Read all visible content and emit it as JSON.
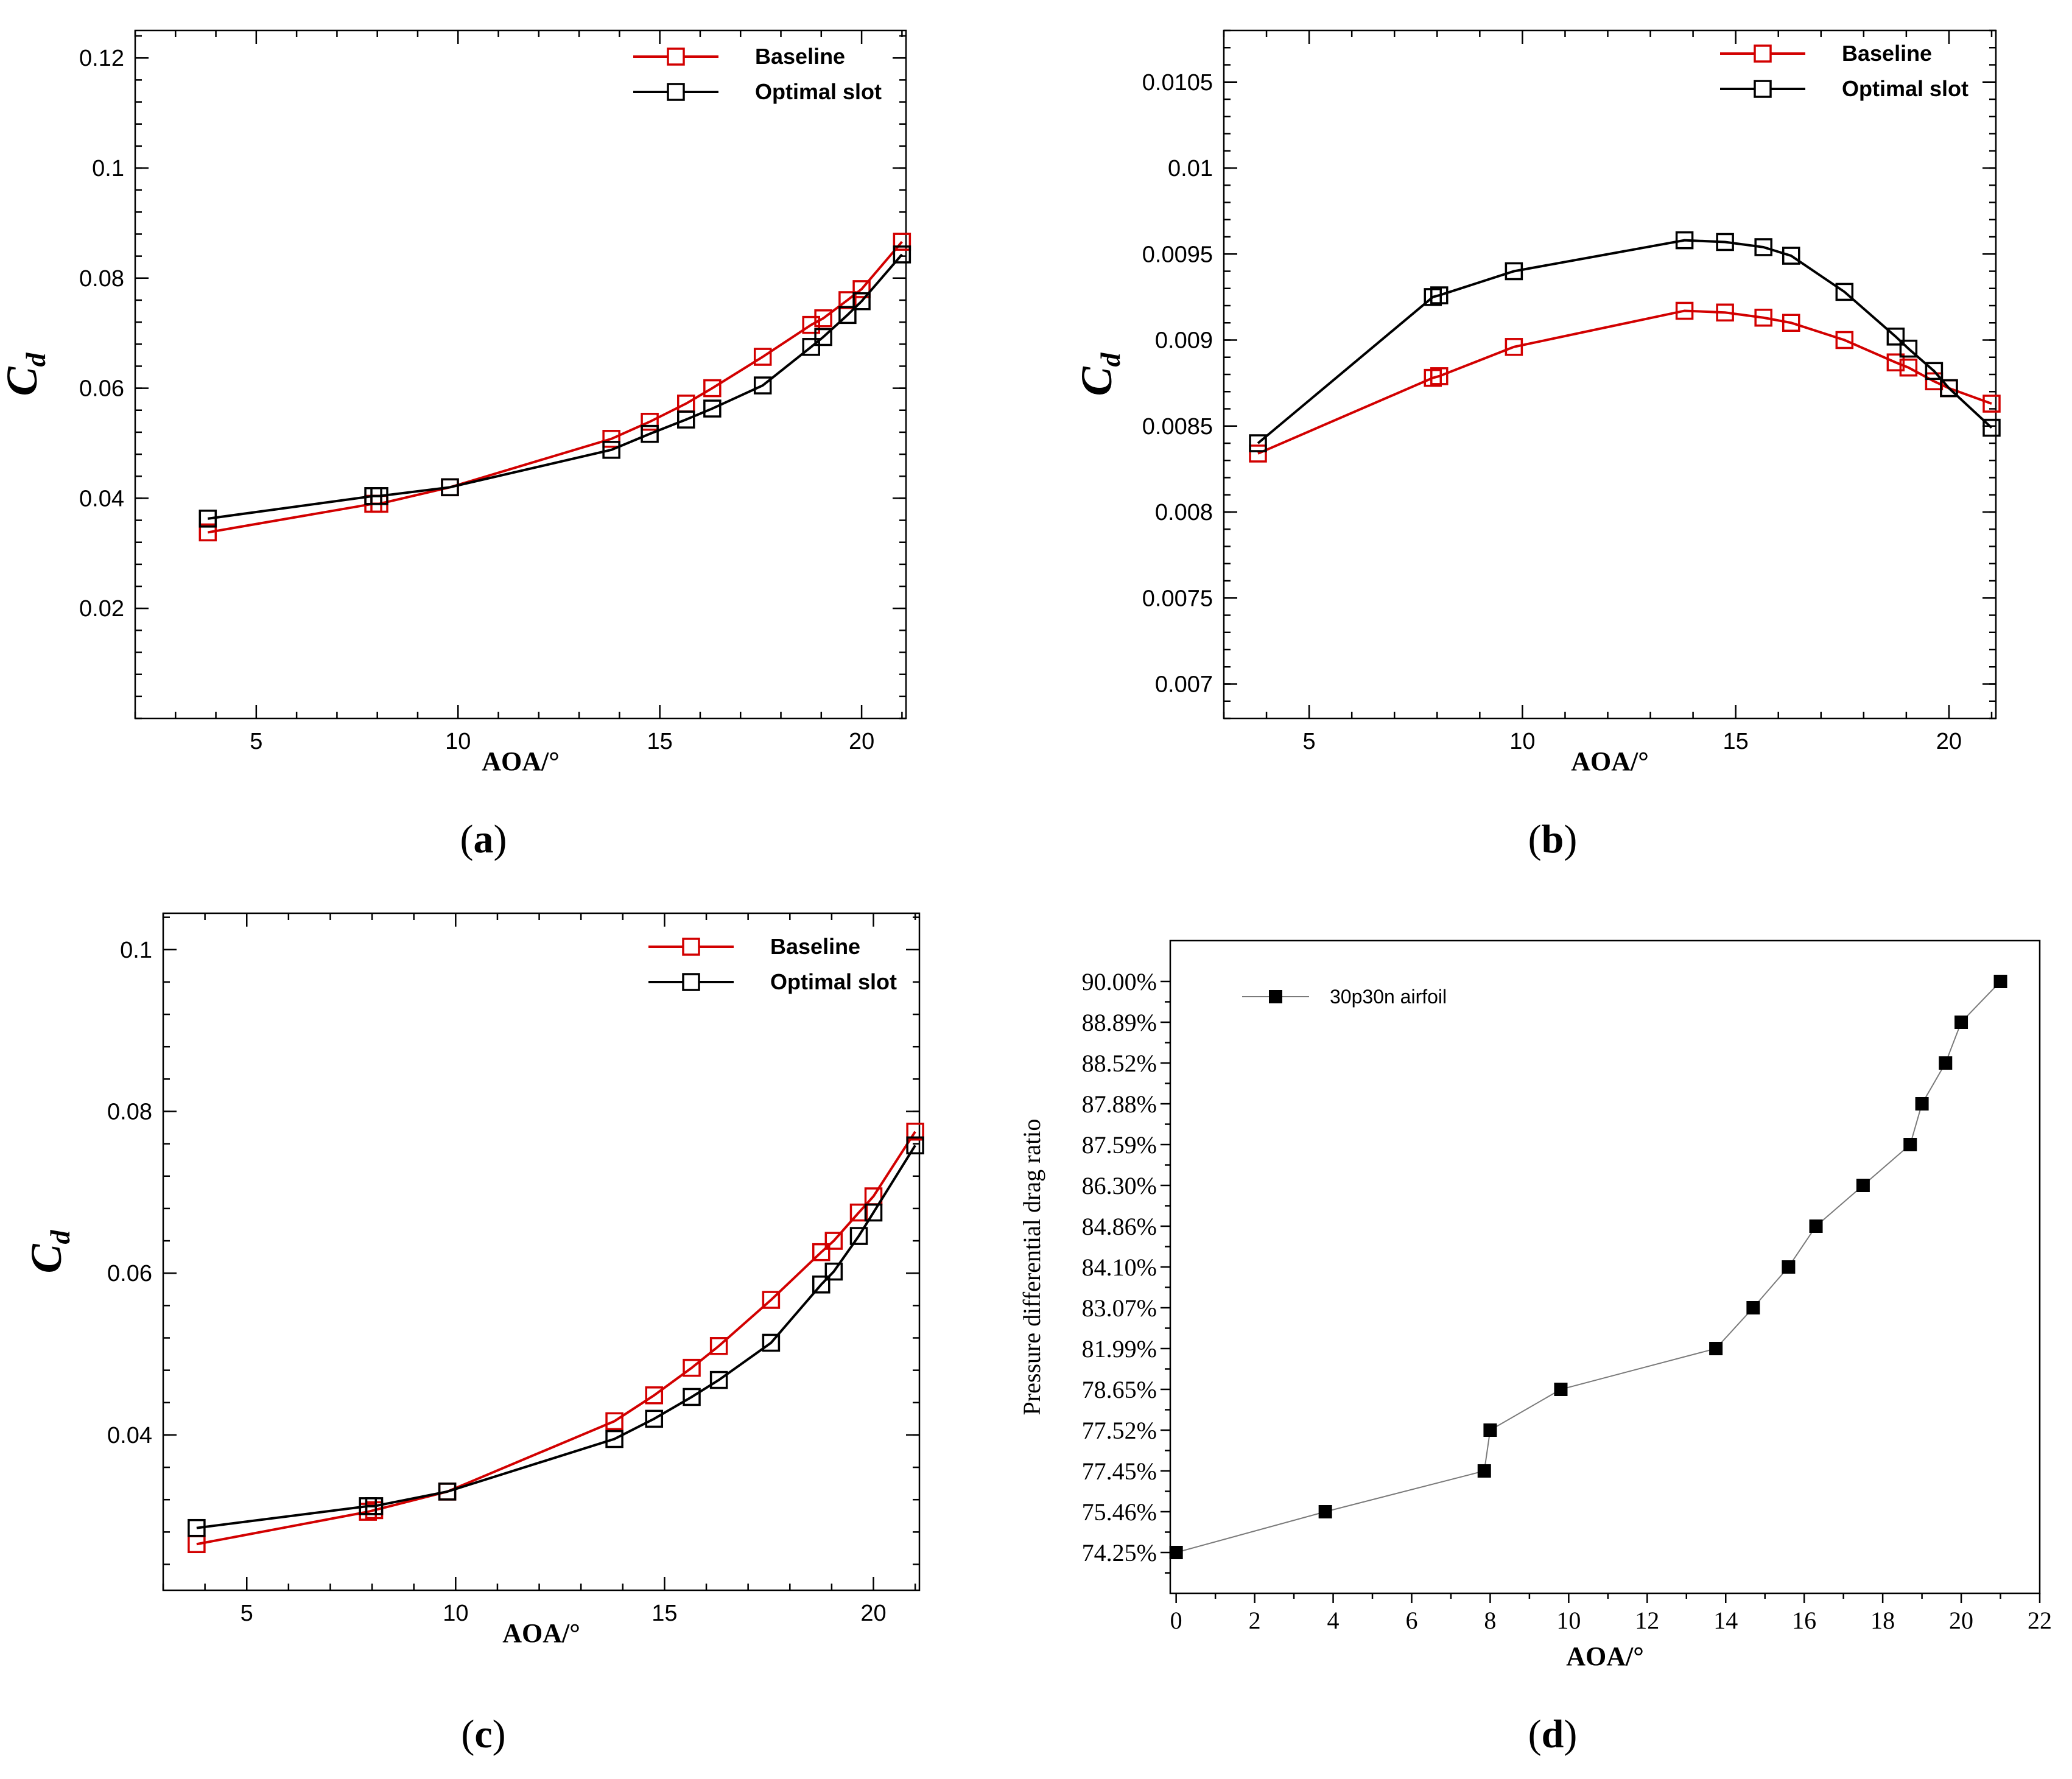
{
  "colors": {
    "baseline": "#d20000",
    "optimal": "#000000",
    "ratio": "#000000",
    "ratio_line": "#7a7a7a"
  },
  "captions": [
    "a",
    "b",
    "c",
    "d"
  ],
  "chart_data": [
    {
      "id": "a",
      "type": "line",
      "title": "",
      "xlabel": "AOA/°",
      "ylabel": "C",
      "ylabel_sub": "d",
      "xlim": [
        2,
        21.1
      ],
      "ylim": [
        0,
        0.125
      ],
      "xticks": [
        5,
        10,
        15,
        20
      ],
      "yticks": [
        0.02,
        0.04,
        0.06,
        0.08,
        0.1,
        0.12
      ],
      "ytick_labels": [
        "0.02",
        "0.04",
        "0.06",
        "0.08",
        "0.1",
        "0.12"
      ],
      "legend": [
        "Baseline",
        "Optimal slot"
      ],
      "x": [
        3.8,
        7.9,
        8.05,
        9.8,
        13.8,
        14.75,
        15.65,
        16.3,
        17.55,
        18.75,
        19.05,
        19.65,
        20.0,
        21.0
      ],
      "series": [
        {
          "name": "Baseline",
          "values": [
            0.0338,
            0.039,
            0.039,
            0.042,
            0.0508,
            0.0539,
            0.0572,
            0.06,
            0.0657,
            0.0715,
            0.0727,
            0.076,
            0.078,
            0.0866
          ]
        },
        {
          "name": "Optimal slot",
          "values": [
            0.0363,
            0.0404,
            0.0404,
            0.042,
            0.0488,
            0.0517,
            0.0543,
            0.0563,
            0.0605,
            0.0675,
            0.0693,
            0.0733,
            0.0758,
            0.0843
          ]
        }
      ]
    },
    {
      "id": "b",
      "type": "line",
      "title": "",
      "xlabel": "AOA/°",
      "ylabel": "C",
      "ylabel_sub": "d",
      "xlim": [
        3,
        21.1
      ],
      "ylim": [
        0.0068,
        0.0108
      ],
      "xticks": [
        5,
        10,
        15,
        20
      ],
      "yticks": [
        0.007,
        0.0075,
        0.008,
        0.0085,
        0.009,
        0.0095,
        0.01,
        0.0105
      ],
      "ytick_labels": [
        "0.007",
        "0.0075",
        "0.008",
        "0.0085",
        "0.009",
        "0.0095",
        "0.01",
        "0.0105"
      ],
      "legend": [
        "Baseline",
        "Optimal slot"
      ],
      "x": [
        3.8,
        7.9,
        8.05,
        9.8,
        13.8,
        14.75,
        15.65,
        16.3,
        17.55,
        18.75,
        19.05,
        19.65,
        20.0,
        21.0
      ],
      "series": [
        {
          "name": "Baseline",
          "values": [
            0.00834,
            0.00878,
            0.00879,
            0.00896,
            0.00917,
            0.00916,
            0.00913,
            0.0091,
            0.009,
            0.00887,
            0.00884,
            0.00876,
            0.00872,
            0.00863
          ]
        },
        {
          "name": "Optimal slot",
          "values": [
            0.0084,
            0.00925,
            0.00926,
            0.0094,
            0.00958,
            0.00957,
            0.00954,
            0.00949,
            0.00928,
            0.00902,
            0.00895,
            0.00882,
            0.00872,
            0.00849
          ]
        }
      ]
    },
    {
      "id": "c",
      "type": "line",
      "title": "",
      "xlabel": "AOA/°",
      "ylabel": "C",
      "ylabel_sub": "d",
      "xlim": [
        3,
        21.1
      ],
      "ylim": [
        0.0208,
        0.1045
      ],
      "xticks": [
        5,
        10,
        15,
        20
      ],
      "yticks": [
        0.04,
        0.06,
        0.08,
        0.1
      ],
      "ytick_labels": [
        "0.04",
        "0.06",
        "0.08",
        "0.1"
      ],
      "legend": [
        "Baseline",
        "Optimal slot"
      ],
      "x": [
        3.8,
        7.9,
        8.05,
        9.8,
        13.8,
        14.75,
        15.65,
        16.3,
        17.55,
        18.75,
        19.05,
        19.65,
        20.0,
        21.0
      ],
      "series": [
        {
          "name": "Baseline",
          "values": [
            0.0265,
            0.0305,
            0.0307,
            0.033,
            0.0417,
            0.0449,
            0.0483,
            0.051,
            0.0567,
            0.0626,
            0.064,
            0.0675,
            0.0695,
            0.0775
          ]
        },
        {
          "name": "Optimal slot",
          "values": [
            0.0285,
            0.0312,
            0.0312,
            0.033,
            0.0395,
            0.042,
            0.0447,
            0.0468,
            0.0514,
            0.0586,
            0.0602,
            0.0646,
            0.0675,
            0.0758
          ]
        }
      ]
    },
    {
      "id": "d",
      "type": "line",
      "title": "",
      "xlabel": "AOA/°",
      "ylabel": "Pressure differential drag ratio",
      "xlim": [
        -0.15,
        22.0
      ],
      "xticks": [
        0,
        2,
        4,
        6,
        8,
        10,
        12,
        14,
        16,
        18,
        20,
        22
      ],
      "y_is_categorical": true,
      "ylim": [
        -1,
        15
      ],
      "ytick_labels": [
        "74.25%",
        "75.46%",
        "77.45%",
        "77.52%",
        "78.65%",
        "81.99%",
        "83.07%",
        "84.10%",
        "84.86%",
        "86.30%",
        "87.59%",
        "87.88%",
        "88.52%",
        "88.89%",
        "90.00%"
      ],
      "legend": [
        "30p30n airfoil"
      ],
      "x": [
        0,
        3.8,
        7.85,
        8.0,
        9.8,
        13.75,
        14.7,
        15.6,
        16.3,
        17.5,
        18.7,
        19.0,
        19.6,
        20.0,
        21.0
      ],
      "values": [
        0,
        1,
        2,
        3,
        4,
        5,
        6,
        7,
        8,
        9,
        10,
        11,
        12,
        13,
        14
      ],
      "value_labels": [
        "74.25%",
        "75.46%",
        "77.45%",
        "77.52%",
        "78.65%",
        "81.99%",
        "83.07%",
        "84.10%",
        "84.86%",
        "86.30%",
        "87.59%",
        "87.88%",
        "88.52%",
        "88.89%",
        "90.00%"
      ]
    }
  ]
}
